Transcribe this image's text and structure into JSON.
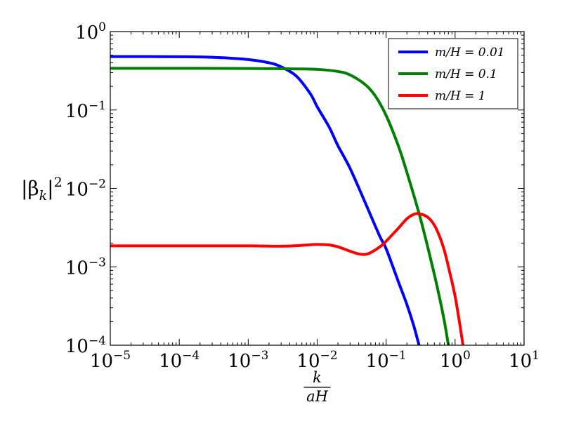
{
  "chart_data": {
    "type": "line",
    "xscale": "log",
    "yscale": "log",
    "xlim": [
      1e-05,
      10
    ],
    "ylim": [
      0.0001,
      1
    ],
    "grid": false,
    "legend_position": "top-right",
    "ylabel": "|βk|2",
    "ylabel_parts": {
      "base": "|β",
      "sub": "k",
      "close": "|",
      "sup": "2"
    },
    "xlabel": "k / aH",
    "xlabel_parts": {
      "numerator": "k",
      "denominator": "aH"
    },
    "xticks": [
      {
        "value": 1e-05,
        "base": "10",
        "exp": "−5"
      },
      {
        "value": 0.0001,
        "base": "10",
        "exp": "−4"
      },
      {
        "value": 0.001,
        "base": "10",
        "exp": "−3"
      },
      {
        "value": 0.01,
        "base": "10",
        "exp": "−2"
      },
      {
        "value": 0.1,
        "base": "10",
        "exp": "−1"
      },
      {
        "value": 1,
        "base": "10",
        "exp": "0"
      },
      {
        "value": 10,
        "base": "10",
        "exp": "1"
      }
    ],
    "yticks": [
      {
        "value": 0.0001,
        "base": "10",
        "exp": "−4"
      },
      {
        "value": 0.001,
        "base": "10",
        "exp": "−3"
      },
      {
        "value": 0.01,
        "base": "10",
        "exp": "−2"
      },
      {
        "value": 0.1,
        "base": "10",
        "exp": "−1"
      },
      {
        "value": 1,
        "base": "10",
        "exp": "0"
      }
    ],
    "series": [
      {
        "name": "m/H = 0.01",
        "color": "#0000ff",
        "x": [
          1e-05,
          0.0001,
          0.0003,
          0.001,
          0.002,
          0.003,
          0.005,
          0.008,
          0.01,
          0.015,
          0.02,
          0.03,
          0.05,
          0.08,
          0.1,
          0.15,
          0.2,
          0.25,
          0.3
        ],
        "y": [
          0.48,
          0.478,
          0.47,
          0.44,
          0.4,
          0.355,
          0.27,
          0.16,
          0.11,
          0.06,
          0.035,
          0.018,
          0.0065,
          0.0025,
          0.0017,
          0.00065,
          0.00033,
          0.00018,
          0.0001
        ]
      },
      {
        "name": "m/H = 0.1",
        "color": "#008000",
        "x": [
          1e-05,
          0.0001,
          0.001,
          0.003,
          0.005,
          0.01,
          0.02,
          0.03,
          0.05,
          0.07,
          0.1,
          0.15,
          0.2,
          0.3,
          0.4,
          0.5,
          0.6,
          0.7,
          0.8
        ],
        "y": [
          0.34,
          0.34,
          0.338,
          0.336,
          0.334,
          0.33,
          0.31,
          0.28,
          0.21,
          0.15,
          0.085,
          0.035,
          0.016,
          0.0048,
          0.0018,
          0.0008,
          0.00039,
          0.0002,
          0.0001
        ]
      },
      {
        "name": "m/H = 1",
        "color": "#ff0000",
        "x": [
          1e-05,
          0.0001,
          0.001,
          0.003,
          0.005,
          0.008,
          0.01,
          0.015,
          0.02,
          0.03,
          0.04,
          0.05,
          0.06,
          0.08,
          0.1,
          0.15,
          0.2,
          0.25,
          0.3,
          0.4,
          0.5,
          0.6,
          0.7,
          0.8,
          1.0,
          1.2,
          1.3
        ],
        "y": [
          0.00185,
          0.00185,
          0.00185,
          0.00183,
          0.00186,
          0.00191,
          0.00193,
          0.0019,
          0.0018,
          0.00158,
          0.00146,
          0.00144,
          0.00152,
          0.00178,
          0.00212,
          0.0031,
          0.0041,
          0.00465,
          0.00475,
          0.0043,
          0.0034,
          0.0024,
          0.0016,
          0.001,
          0.00042,
          0.00016,
          0.0001
        ]
      }
    ]
  }
}
